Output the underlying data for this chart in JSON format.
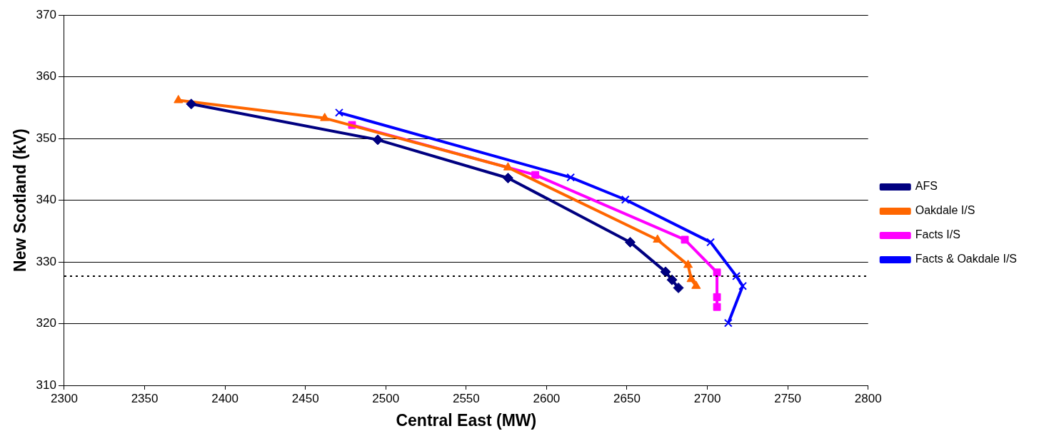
{
  "chart_data": {
    "type": "line",
    "xlabel": "Central East (MW)",
    "ylabel": "New Scotland (kV)",
    "xlim": [
      2300,
      2800
    ],
    "xticks": [
      2300,
      2350,
      2400,
      2450,
      2500,
      2550,
      2600,
      2650,
      2700,
      2750,
      2800
    ],
    "ylim": [
      310,
      370
    ],
    "yticks": [
      310,
      320,
      330,
      340,
      350,
      360,
      370
    ],
    "grid": "y",
    "legend": "right",
    "line_style": "solid",
    "ref_lines": [
      {
        "axis": "y",
        "value": 327.7,
        "color": "#000000",
        "line_style": "dotted"
      }
    ],
    "series": [
      {
        "name": "AFS",
        "color": "#000080",
        "marker": "diamond",
        "x": [
          2379,
          2495,
          2576,
          2652,
          2674,
          2678,
          2682
        ],
        "values": [
          355.6,
          349.8,
          343.6,
          333.2,
          328.4,
          327.1,
          325.8
        ]
      },
      {
        "name": "Oakdale I/S",
        "color": "#ff6600",
        "marker": "triangle",
        "x": [
          2371,
          2462,
          2576,
          2669,
          2688,
          2690,
          2693
        ],
        "values": [
          356.2,
          353.3,
          345.3,
          333.6,
          329.5,
          327.2,
          326.1
        ]
      },
      {
        "name": "Facts I/S",
        "color": "#ff00ff",
        "marker": "square",
        "x": [
          2479,
          2593,
          2686,
          2706,
          2706,
          2706
        ],
        "values": [
          352.2,
          344.1,
          333.6,
          328.3,
          324.3,
          322.7
        ]
      },
      {
        "name": "Facts & Oakdale I/S",
        "color": "#0000ff",
        "marker": "cross",
        "x": [
          2471,
          2615,
          2649,
          2702,
          2718,
          2722,
          2713
        ],
        "values": [
          354.2,
          343.7,
          340.1,
          333.2,
          327.7,
          326.1,
          320.1
        ]
      }
    ]
  }
}
